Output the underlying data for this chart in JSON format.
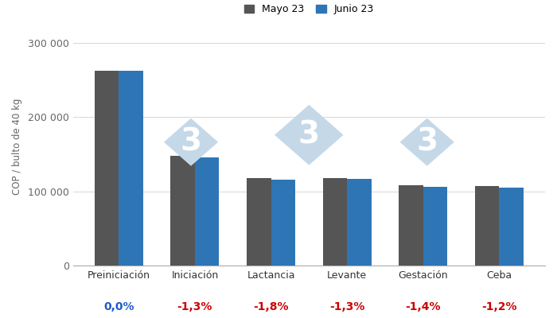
{
  "categories": [
    "Preiniciación",
    "Iniciación",
    "Lactancia",
    "Levante",
    "Gestación",
    "Ceba"
  ],
  "mayo_values": [
    262500,
    148000,
    118000,
    118000,
    108000,
    107000
  ],
  "junio_values": [
    262500,
    146074,
    115876,
    116466,
    106488,
    105716
  ],
  "changes": [
    "0,0%",
    "-1,3%",
    "-1,8%",
    "-1,3%",
    "-1,4%",
    "-1,2%"
  ],
  "change_colors": [
    "#1F5CC8",
    "#CC0000",
    "#CC0000",
    "#CC0000",
    "#CC0000",
    "#CC0000"
  ],
  "mayo_color": "#555555",
  "junio_color": "#2E75B6",
  "ylabel": "COP / bulto de 40 kg",
  "ylim": [
    0,
    320000
  ],
  "yticks": [
    0,
    100000,
    200000,
    300000
  ],
  "ytick_labels": [
    "0",
    "100 000",
    "200 000",
    "300 000"
  ],
  "legend_mayo": "Mayo 23",
  "legend_junio": "Junio 23",
  "background_color": "#ffffff",
  "grid_color": "#d0d0d0",
  "watermark_text_color": "#b8cfe0",
  "watermark_diamond_color": "#c5d8e8"
}
